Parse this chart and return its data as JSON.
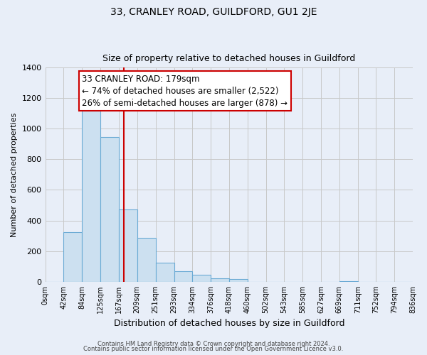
{
  "title1": "33, CRANLEY ROAD, GUILDFORD, GU1 2JE",
  "title2": "Size of property relative to detached houses in Guildford",
  "xlabel": "Distribution of detached houses by size in Guildford",
  "ylabel": "Number of detached properties",
  "bar_values": [
    0,
    325,
    1115,
    945,
    470,
    285,
    125,
    68,
    45,
    20,
    18,
    0,
    0,
    0,
    0,
    0,
    5,
    0,
    0,
    0
  ],
  "bin_edges": [
    0,
    42,
    84,
    125,
    167,
    209,
    251,
    293,
    334,
    376,
    418,
    460,
    502,
    543,
    585,
    627,
    669,
    711,
    752,
    794,
    836
  ],
  "tick_labels": [
    "0sqm",
    "42sqm",
    "84sqm",
    "125sqm",
    "167sqm",
    "209sqm",
    "251sqm",
    "293sqm",
    "334sqm",
    "376sqm",
    "418sqm",
    "460sqm",
    "502sqm",
    "543sqm",
    "585sqm",
    "627sqm",
    "669sqm",
    "711sqm",
    "752sqm",
    "794sqm",
    "836sqm"
  ],
  "bar_color": "#cce0f0",
  "bar_edge_color": "#6aaad4",
  "grid_color": "#c8c8c8",
  "bg_color": "#e8eef8",
  "plot_bg_color": "#e8eef8",
  "vline_x": 179,
  "vline_color": "#cc0000",
  "annotation_line1": "33 CRANLEY ROAD: 179sqm",
  "annotation_line2": "← 74% of detached houses are smaller (2,522)",
  "annotation_line3": "26% of semi-detached houses are larger (878) →",
  "annotation_box_color": "#ffffff",
  "annotation_border_color": "#cc0000",
  "ylim": [
    0,
    1400
  ],
  "yticks": [
    0,
    200,
    400,
    600,
    800,
    1000,
    1200,
    1400
  ],
  "footer1": "Contains HM Land Registry data © Crown copyright and database right 2024.",
  "footer2": "Contains public sector information licensed under the Open Government Licence v3.0."
}
